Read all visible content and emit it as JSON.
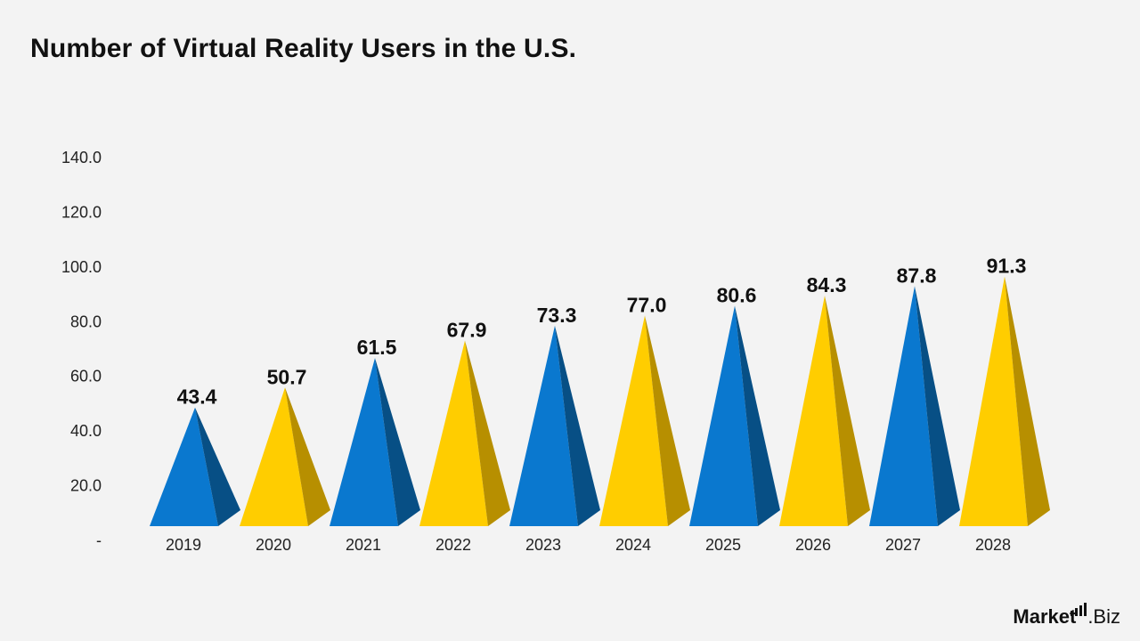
{
  "title": "Number of Virtual Reality Users in the U.S.",
  "brand": {
    "part1": "Market",
    "part2": ".Biz",
    "icon": "bar-chart-icon"
  },
  "colors": {
    "blue": "#0a78cf",
    "blue_dark": "#074f85",
    "yellow": "#ffcd00",
    "yellow_dark": "#b78f00"
  },
  "chart_data": {
    "type": "bar",
    "bar_shape": "pyramid",
    "title": "Number of Virtual Reality Users in the U.S.",
    "categories": [
      "2019",
      "2020",
      "2021",
      "2022",
      "2023",
      "2024",
      "2025",
      "2026",
      "2027",
      "2028"
    ],
    "values": [
      43.4,
      50.7,
      61.5,
      67.9,
      73.3,
      77.0,
      80.6,
      84.3,
      87.8,
      91.3
    ],
    "value_labels": [
      "43.4",
      "50.7",
      "61.5",
      "67.9",
      "73.3",
      "77.0",
      "80.6",
      "84.3",
      "87.8",
      "91.3"
    ],
    "y_ticks": [
      "-",
      "20.0",
      "40.0",
      "60.0",
      "80.0",
      "100.0",
      "120.0",
      "140.0"
    ],
    "ylim": [
      0,
      140
    ],
    "bar_colors": [
      "blue",
      "yellow",
      "blue",
      "yellow",
      "blue",
      "yellow",
      "blue",
      "yellow",
      "blue",
      "yellow"
    ],
    "grid": false,
    "legend": "none",
    "xlabel": "",
    "ylabel": ""
  }
}
